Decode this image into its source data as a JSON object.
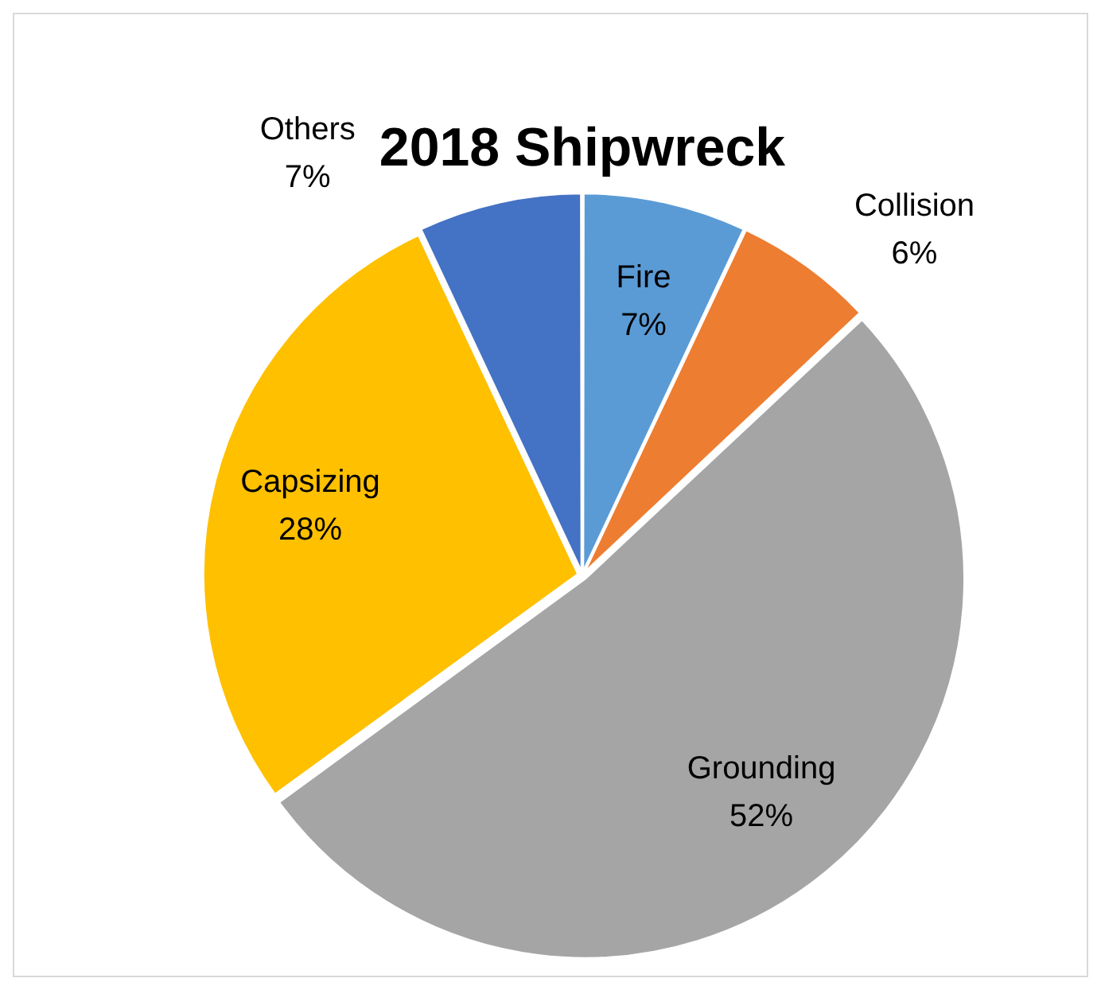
{
  "chart_data": {
    "type": "pie",
    "title": "2018 Shipwreck",
    "categories": [
      "Fire",
      "Collision",
      "Grounding",
      "Capsizing",
      "Others"
    ],
    "values": [
      7,
      6,
      52,
      28,
      7
    ],
    "colors": [
      "#5b9bd5",
      "#ed7d31",
      "#a5a5a5",
      "#ffc000",
      "#4472c4"
    ],
    "value_labels": [
      "7%",
      "6%",
      "52%",
      "28%",
      "7%"
    ],
    "legend": false
  }
}
